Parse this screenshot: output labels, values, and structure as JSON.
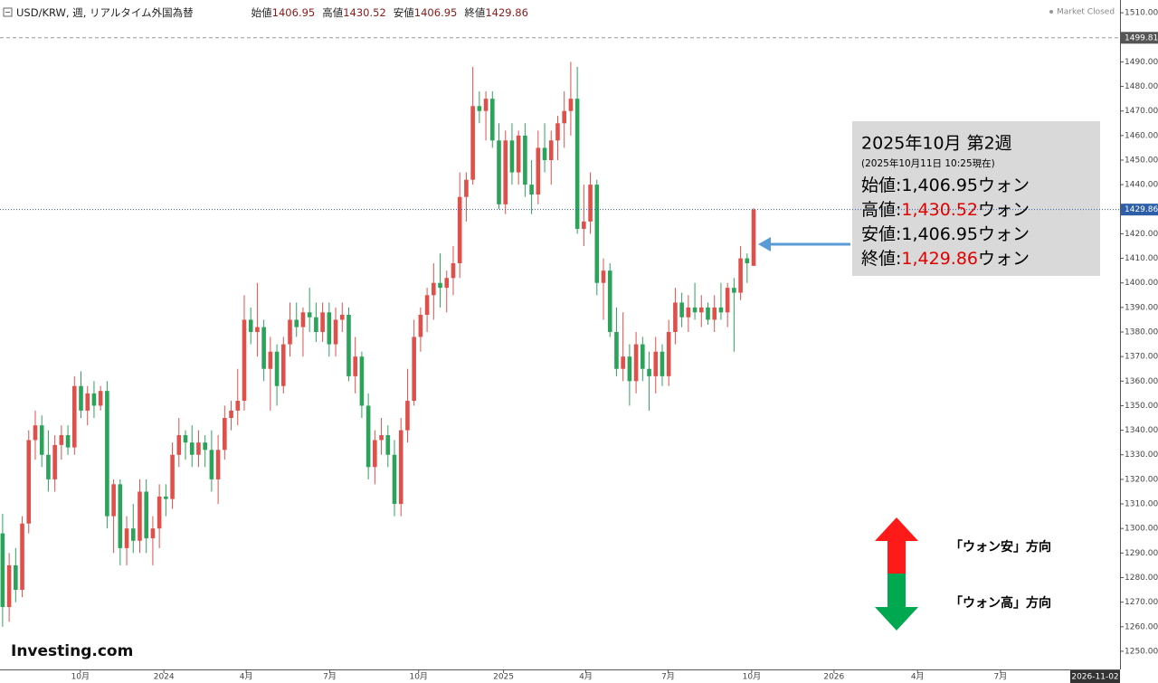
{
  "header": {
    "symbol": "USD/KRW, 週, リアルタイム外国為替",
    "fields": [
      {
        "label": "始値",
        "key": "open"
      },
      {
        "label": "高値",
        "key": "high"
      },
      {
        "label": "安値",
        "key": "low"
      },
      {
        "label": "終値",
        "key": "close"
      }
    ]
  },
  "chart_data": {
    "type": "candlestick",
    "series": [
      {
        "up_color": "#e0504b",
        "down_color": "#2ca35a",
        "open": [
          1298,
          1268,
          1285,
          1275,
          1302,
          1336,
          1342,
          1330,
          1320,
          1334,
          1338,
          1333,
          1358,
          1348,
          1355,
          1350,
          1356,
          1305,
          1318,
          1292,
          1300,
          1295,
          1315,
          1296,
          1300,
          1313,
          1312,
          1330,
          1338,
          1335,
          1330,
          1335,
          1332,
          1320,
          1332,
          1345,
          1348,
          1352,
          1385,
          1380,
          1382,
          1365,
          1372,
          1358,
          1375,
          1385,
          1382,
          1388,
          1386,
          1380,
          1388,
          1375,
          1385,
          1387,
          1362,
          1370,
          1350,
          1325,
          1336,
          1338,
          1330,
          1310,
          1340,
          1352,
          1378,
          1387,
          1395,
          1400,
          1398,
          1402,
          1408,
          1435,
          1442,
          1472,
          1470,
          1475,
          1458,
          1432,
          1458,
          1445,
          1460,
          1440,
          1436,
          1455,
          1450,
          1458,
          1465,
          1470,
          1475,
          1422,
          1425,
          1440,
          1400,
          1405,
          1380,
          1365,
          1370,
          1360,
          1375,
          1365,
          1362,
          1372,
          1362,
          1380,
          1392,
          1386,
          1390,
          1388,
          1390,
          1385,
          1390,
          1388,
          1398,
          1396,
          1410,
          1406.95
        ],
        "high": [
          1306,
          1290,
          1292,
          1305,
          1340,
          1348,
          1346,
          1340,
          1338,
          1342,
          1342,
          1362,
          1364,
          1358,
          1360,
          1358,
          1360,
          1320,
          1320,
          1305,
          1310,
          1320,
          1320,
          1305,
          1318,
          1318,
          1335,
          1345,
          1340,
          1342,
          1340,
          1338,
          1340,
          1338,
          1350,
          1352,
          1365,
          1395,
          1390,
          1400,
          1385,
          1378,
          1375,
          1378,
          1392,
          1392,
          1390,
          1398,
          1392,
          1392,
          1392,
          1390,
          1392,
          1390,
          1378,
          1372,
          1355,
          1340,
          1345,
          1342,
          1336,
          1345,
          1365,
          1385,
          1390,
          1398,
          1408,
          1412,
          1405,
          1415,
          1445,
          1445,
          1488,
          1478,
          1478,
          1478,
          1465,
          1462,
          1465,
          1462,
          1465,
          1450,
          1462,
          1465,
          1462,
          1468,
          1478,
          1490,
          1488,
          1440,
          1445,
          1442,
          1410,
          1408,
          1390,
          1388,
          1375,
          1380,
          1378,
          1372,
          1378,
          1375,
          1385,
          1398,
          1396,
          1395,
          1400,
          1395,
          1392,
          1395,
          1400,
          1400,
          1402,
          1415,
          1412,
          1430.52
        ],
        "low": [
          1260,
          1262,
          1270,
          1272,
          1298,
          1328,
          1325,
          1315,
          1315,
          1328,
          1330,
          1330,
          1345,
          1342,
          1345,
          1348,
          1300,
          1290,
          1285,
          1285,
          1290,
          1290,
          1290,
          1285,
          1292,
          1305,
          1308,
          1325,
          1328,
          1325,
          1325,
          1325,
          1315,
          1310,
          1328,
          1340,
          1342,
          1348,
          1375,
          1370,
          1360,
          1348,
          1350,
          1355,
          1370,
          1378,
          1370,
          1380,
          1376,
          1376,
          1370,
          1370,
          1380,
          1360,
          1355,
          1345,
          1320,
          1318,
          1330,
          1325,
          1305,
          1305,
          1335,
          1350,
          1372,
          1380,
          1385,
          1390,
          1388,
          1395,
          1402,
          1425,
          1440,
          1465,
          1458,
          1455,
          1430,
          1428,
          1440,
          1440,
          1435,
          1428,
          1432,
          1445,
          1440,
          1450,
          1455,
          1460,
          1420,
          1415,
          1420,
          1395,
          1385,
          1378,
          1362,
          1360,
          1350,
          1355,
          1360,
          1348,
          1355,
          1358,
          1358,
          1375,
          1382,
          1380,
          1385,
          1382,
          1383,
          1380,
          1385,
          1382,
          1372,
          1393,
          1400,
          1406.95
        ],
        "close": [
          1268,
          1285,
          1275,
          1302,
          1336,
          1342,
          1330,
          1320,
          1334,
          1338,
          1333,
          1358,
          1348,
          1355,
          1350,
          1356,
          1305,
          1318,
          1292,
          1300,
          1295,
          1315,
          1296,
          1300,
          1313,
          1312,
          1330,
          1338,
          1335,
          1330,
          1335,
          1332,
          1320,
          1332,
          1345,
          1348,
          1352,
          1385,
          1380,
          1382,
          1365,
          1372,
          1358,
          1375,
          1385,
          1382,
          1388,
          1386,
          1380,
          1388,
          1375,
          1385,
          1387,
          1362,
          1370,
          1350,
          1325,
          1336,
          1338,
          1330,
          1310,
          1340,
          1352,
          1378,
          1387,
          1395,
          1400,
          1398,
          1402,
          1408,
          1435,
          1442,
          1472,
          1470,
          1475,
          1458,
          1432,
          1458,
          1445,
          1460,
          1440,
          1436,
          1455,
          1450,
          1458,
          1465,
          1470,
          1475,
          1422,
          1425,
          1440,
          1400,
          1405,
          1380,
          1365,
          1370,
          1360,
          1375,
          1365,
          1362,
          1372,
          1362,
          1380,
          1392,
          1386,
          1390,
          1388,
          1390,
          1385,
          1390,
          1388,
          1398,
          1396,
          1410,
          1408,
          1429.86
        ]
      }
    ],
    "xlim": [
      -0.4,
      171.1
    ],
    "xticks": [
      {
        "value": 11.9,
        "label": "10月"
      },
      {
        "value": 24.7,
        "label": "2024"
      },
      {
        "value": 37.3,
        "label": "4月"
      },
      {
        "value": 50.1,
        "label": "7月"
      },
      {
        "value": 63.7,
        "label": "10月"
      },
      {
        "value": 76.7,
        "label": "2025"
      },
      {
        "value": 89.3,
        "label": "4月"
      },
      {
        "value": 101.9,
        "label": "7月"
      },
      {
        "value": 114.7,
        "label": "10月"
      },
      {
        "value": 127.3,
        "label": "2026"
      },
      {
        "value": 140.1,
        "label": "4月"
      },
      {
        "value": 152.8,
        "label": "7月"
      }
    ],
    "ylim": [
      1242.6,
      1515.2
    ],
    "yticks": [
      {
        "value": 1250,
        "label": "1250.00"
      },
      {
        "value": 1260,
        "label": "1260.00"
      },
      {
        "value": 1270,
        "label": "1270.00"
      },
      {
        "value": 1280,
        "label": "1280.00"
      },
      {
        "value": 1290,
        "label": "1290.00"
      },
      {
        "value": 1300,
        "label": "1300.00"
      },
      {
        "value": 1310,
        "label": "1310.00"
      },
      {
        "value": 1320,
        "label": "1320.00"
      },
      {
        "value": 1330,
        "label": "1330.00"
      },
      {
        "value": 1340,
        "label": "1340.00"
      },
      {
        "value": 1350,
        "label": "1350.00"
      },
      {
        "value": 1360,
        "label": "1360.00"
      },
      {
        "value": 1370,
        "label": "1370.00"
      },
      {
        "value": 1380,
        "label": "1380.00"
      },
      {
        "value": 1390,
        "label": "1390.00"
      },
      {
        "value": 1400,
        "label": "1400.00"
      },
      {
        "value": 1410,
        "label": "1410.00"
      },
      {
        "value": 1420,
        "label": "1420.00"
      },
      {
        "value": 1430,
        "label": "1430.00"
      },
      {
        "value": 1440,
        "label": "1440.00"
      },
      {
        "value": 1450,
        "label": "1450.00"
      },
      {
        "value": 1460,
        "label": "1460.00"
      },
      {
        "value": 1470,
        "label": "1470.00"
      },
      {
        "value": 1480,
        "label": "1480.00"
      },
      {
        "value": 1490,
        "label": "1490.00"
      },
      {
        "value": 1500,
        "label": "1500.00"
      },
      {
        "value": 1510,
        "label": "1510.00"
      }
    ],
    "hlines": [
      1499.81
    ],
    "cursor_date": "2026-11-02",
    "market_status": "Market Closed",
    "watermark": "Investing.com",
    "info_box": {
      "title": "2025年10月 第2週",
      "subtitle": "(2025年10月11日 10:25現在)",
      "rows": [
        {
          "label": "始値:",
          "value": "1,406.95",
          "unit": "ウォン",
          "color": "#000000"
        },
        {
          "label": "高値:",
          "value": "1,430.52",
          "unit": "ウォン",
          "color": "#e00000"
        },
        {
          "label": "安値:",
          "value": "1,406.95",
          "unit": "ウォン",
          "color": "#000000"
        },
        {
          "label": "終値:",
          "value": "1,429.86",
          "unit": "ウォン",
          "color": "#e00000"
        }
      ]
    },
    "direction_legend": [
      {
        "label": "「ウォン安」方向",
        "color": "#ff1a1a"
      },
      {
        "label": "「ウォン高」方向",
        "color": "#00a84f"
      }
    ]
  }
}
